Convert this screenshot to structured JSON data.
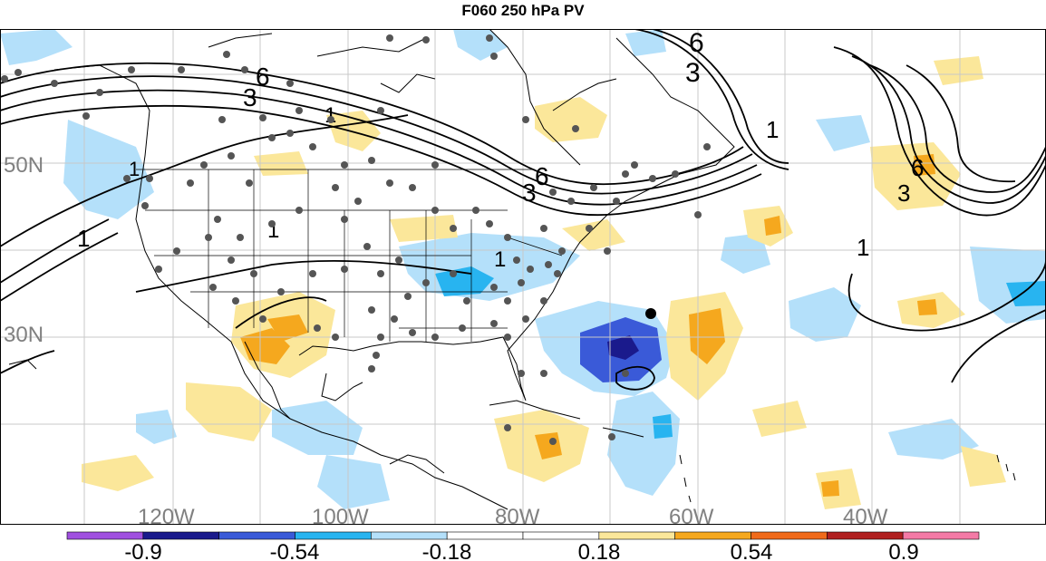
{
  "title": "F060 250 hPa PV",
  "lat_labels": [
    "50N",
    "30N"
  ],
  "lon_labels": [
    "120W",
    "100W",
    "80W",
    "60W",
    "40W"
  ],
  "contour_labels": [
    "6",
    "3",
    "6",
    "3",
    "1",
    "6",
    "3",
    "1",
    "1",
    "1",
    "1",
    "1",
    "6",
    "3",
    "1"
  ],
  "colorbar": {
    "colors": [
      "#a050e0",
      "#1a1a8c",
      "#3a5ad8",
      "#28b4f0",
      "#b4e0fa",
      "#ffffff",
      "#ffffff",
      "#fbe79a",
      "#f5a81e",
      "#f06a1a",
      "#b02020",
      "#f47aa6"
    ],
    "tick_labels": [
      "-0.9",
      "-0.54",
      "-0.18",
      "0.18",
      "0.54",
      "0.9"
    ]
  },
  "colors": {
    "ocean": "#ffffff",
    "grid": "#c8c8c8",
    "coast": "#000000",
    "station": "#555555",
    "contour": "#000000",
    "label_gray": "#808080"
  }
}
